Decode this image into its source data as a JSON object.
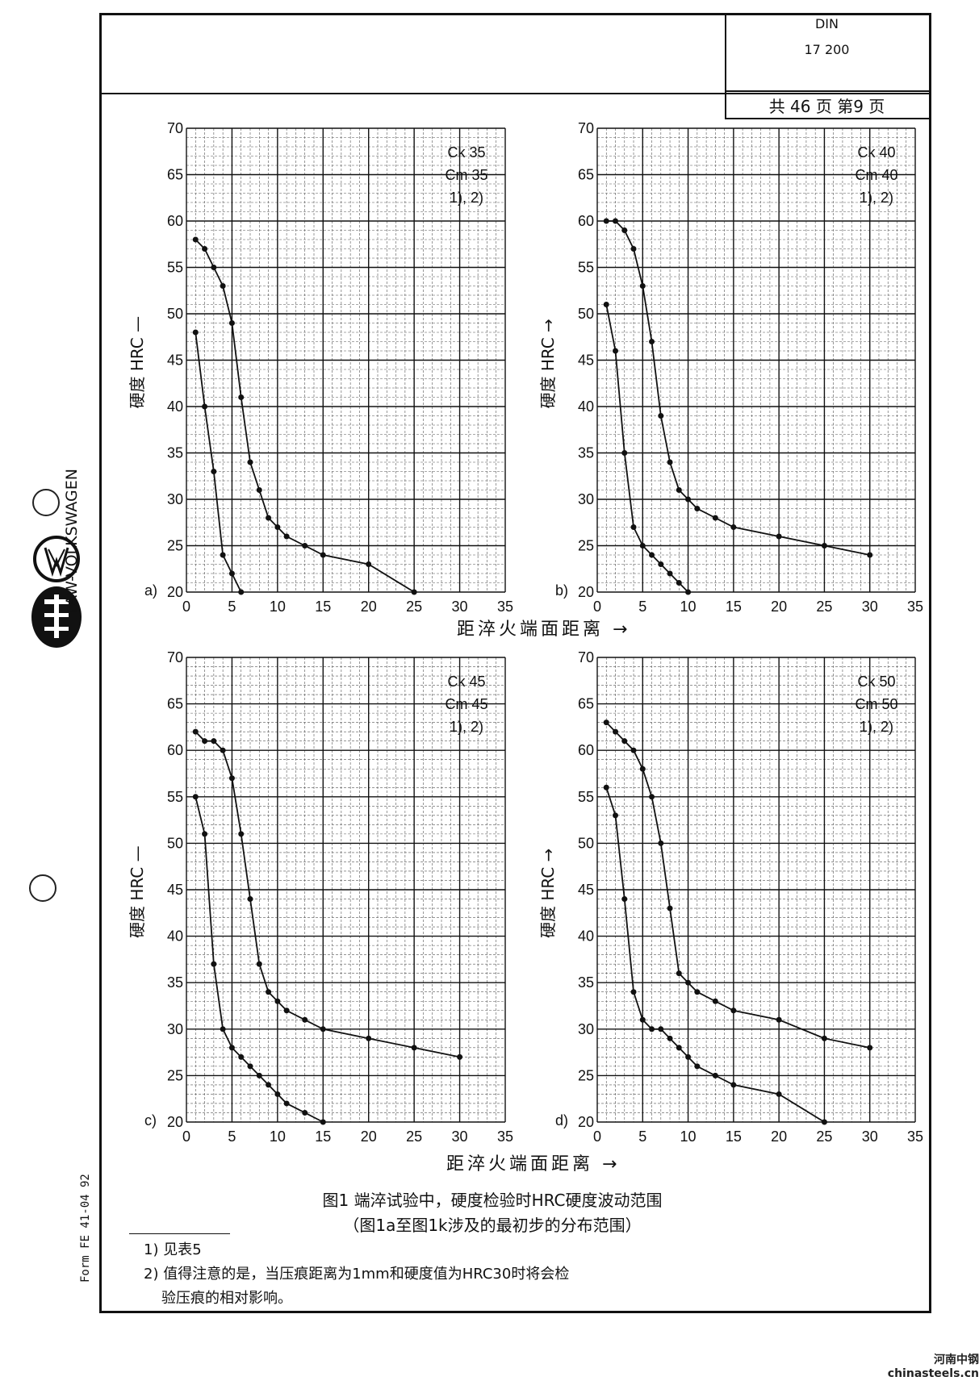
{
  "header": {
    "standard": "DIN",
    "doc_number": "17 200",
    "page_info": "共 46 页 第9 页"
  },
  "sidebar": {
    "brand": "FAW-VOLKSWAGEN",
    "form_code": "Form FE 41-04 92"
  },
  "watermark": "河南中钢 chinasteels.cn",
  "chart_data": [
    {
      "type": "line",
      "panel_label": "a)",
      "ylabel": "硬度 HRC —",
      "xlabel": "距淬火端面距离 →",
      "legend": [
        "Ck 35",
        "Cm 35",
        "1), 2)"
      ],
      "xlim": [
        0,
        35
      ],
      "ylim": [
        20,
        70
      ],
      "xticks": [
        0,
        5,
        10,
        15,
        20,
        25,
        30,
        35
      ],
      "yticks": [
        20,
        25,
        30,
        35,
        40,
        45,
        50,
        55,
        60,
        65,
        70
      ],
      "grid": true,
      "series": [
        {
          "x": [
            1,
            2,
            3,
            4,
            5,
            6,
            7,
            8,
            9,
            10,
            11,
            13,
            15,
            20,
            25
          ],
          "y": [
            58,
            57,
            55,
            53,
            49,
            41,
            34,
            31,
            28,
            27,
            26,
            25,
            24,
            23,
            20
          ]
        },
        {
          "x": [
            1,
            2,
            3,
            4,
            5,
            6
          ],
          "y": [
            48,
            40,
            33,
            24,
            22,
            20
          ]
        }
      ]
    },
    {
      "type": "line",
      "panel_label": "b)",
      "ylabel": "硬度 HRC →",
      "xlabel": "距淬火端面距离 →",
      "legend": [
        "Ck 40",
        "Cm 40",
        "1), 2)"
      ],
      "xlim": [
        0,
        35
      ],
      "ylim": [
        20,
        70
      ],
      "xticks": [
        0,
        5,
        10,
        15,
        20,
        25,
        30,
        35
      ],
      "yticks": [
        20,
        25,
        30,
        35,
        40,
        45,
        50,
        55,
        60,
        65,
        70
      ],
      "grid": true,
      "series": [
        {
          "x": [
            1,
            2,
            3,
            4,
            5,
            6,
            7,
            8,
            9,
            10,
            11,
            13,
            15,
            20,
            25,
            30
          ],
          "y": [
            60,
            60,
            59,
            57,
            53,
            47,
            39,
            34,
            31,
            30,
            29,
            28,
            27,
            26,
            25,
            24
          ]
        },
        {
          "x": [
            1,
            2,
            3,
            4,
            5,
            6,
            7,
            8,
            9,
            10
          ],
          "y": [
            51,
            46,
            35,
            27,
            25,
            24,
            23,
            22,
            21,
            20
          ]
        }
      ]
    },
    {
      "type": "line",
      "panel_label": "c)",
      "ylabel": "硬度 HRC —",
      "xlabel": "距淬火端面距离 →",
      "legend": [
        "Ck 45",
        "Cm 45",
        "1), 2)"
      ],
      "xlim": [
        0,
        35
      ],
      "ylim": [
        20,
        70
      ],
      "xticks": [
        0,
        5,
        10,
        15,
        20,
        25,
        30,
        35
      ],
      "yticks": [
        20,
        25,
        30,
        35,
        40,
        45,
        50,
        55,
        60,
        65,
        70
      ],
      "grid": true,
      "series": [
        {
          "x": [
            1,
            2,
            3,
            4,
            5,
            6,
            7,
            8,
            9,
            10,
            11,
            13,
            15,
            20,
            25,
            30
          ],
          "y": [
            62,
            61,
            61,
            60,
            57,
            51,
            44,
            37,
            34,
            33,
            32,
            31,
            30,
            29,
            28,
            27
          ]
        },
        {
          "x": [
            1,
            2,
            3,
            4,
            5,
            6,
            7,
            8,
            9,
            10,
            11,
            13,
            15
          ],
          "y": [
            55,
            51,
            37,
            30,
            28,
            27,
            26,
            25,
            24,
            23,
            22,
            21,
            20
          ]
        }
      ]
    },
    {
      "type": "line",
      "panel_label": "d)",
      "ylabel": "硬度 HRC →",
      "xlabel": "距淬火端面距离 →",
      "legend": [
        "Ck 50",
        "Cm 50",
        "1), 2)"
      ],
      "xlim": [
        0,
        35
      ],
      "ylim": [
        20,
        70
      ],
      "xticks": [
        0,
        5,
        10,
        15,
        20,
        25,
        30,
        35
      ],
      "yticks": [
        20,
        25,
        30,
        35,
        40,
        45,
        50,
        55,
        60,
        65,
        70
      ],
      "grid": true,
      "series": [
        {
          "x": [
            1,
            2,
            3,
            4,
            5,
            6,
            7,
            8,
            9,
            10,
            11,
            13,
            15,
            20,
            25,
            30
          ],
          "y": [
            63,
            62,
            61,
            60,
            58,
            55,
            50,
            43,
            36,
            35,
            34,
            33,
            32,
            31,
            29,
            28
          ]
        },
        {
          "x": [
            1,
            2,
            3,
            4,
            5,
            6,
            7,
            8,
            9,
            10,
            11,
            13,
            15,
            20,
            25
          ],
          "y": [
            56,
            53,
            44,
            34,
            31,
            30,
            30,
            29,
            28,
            27,
            26,
            25,
            24,
            23,
            20
          ]
        }
      ]
    }
  ],
  "xlabel_top": "距淬火端面距离 →",
  "xlabel_bottom": "距淬火端面距离 →",
  "caption": {
    "line1": "图1  端淬试验中，硬度检验时HRC硬度波动范围",
    "line2": "（图1a至图1k涉及的最初步的分布范围）"
  },
  "footnotes": {
    "fn1": "1) 见表5",
    "fn2_line1": "2) 值得注意的是，当压痕距离为1mm和硬度值为HRC30时将会检",
    "fn2_line2": "验压痕的相对影响。"
  }
}
